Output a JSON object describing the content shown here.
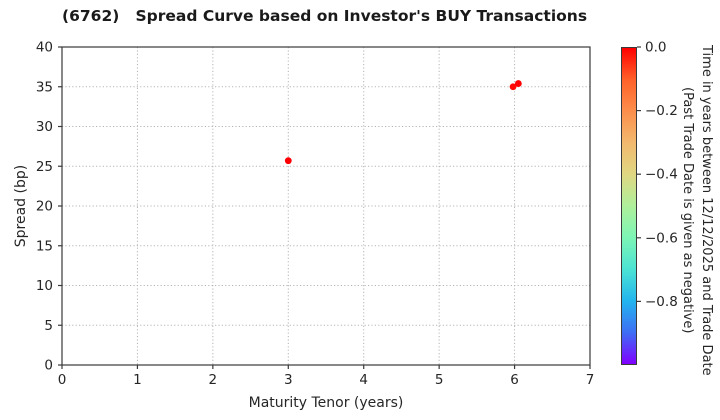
{
  "chart_data": {
    "type": "scatter",
    "title": "(6762)   Spread Curve based on Investor's BUY Transactions",
    "xlabel": "Maturity Tenor (years)",
    "ylabel": "Spread (bp)",
    "xlim": [
      0,
      7
    ],
    "ylim": [
      0,
      40
    ],
    "xticks": [
      0,
      1,
      2,
      3,
      4,
      5,
      6,
      7
    ],
    "yticks": [
      0,
      5,
      10,
      15,
      20,
      25,
      30,
      35,
      40
    ],
    "grid": true,
    "legend": "none",
    "points": [
      {
        "x": 3.0,
        "y": 25.7,
        "t": 0.0
      },
      {
        "x": 5.98,
        "y": 35.0,
        "t": -0.01
      },
      {
        "x": 6.05,
        "y": 35.4,
        "t": 0.0
      }
    ],
    "colorbar": {
      "label_line1": "Time in years between 12/12/2025 and Trade Date",
      "label_line2": "(Past Trade Date is given as negative)",
      "ticks": [
        0.0,
        -0.2,
        -0.4,
        -0.6,
        -0.8
      ],
      "range": [
        -1.0,
        0.0
      ],
      "colors_top_to_bottom": [
        "#ff0000",
        "#ff6129",
        "#fc8e4c",
        "#f2b96e",
        "#e0d782",
        "#aff09b",
        "#7df5b5",
        "#4ce3d3",
        "#22b5ee",
        "#3e6ef4",
        "#8000ff"
      ]
    },
    "accent_colors": {
      "marker": "#ff0f00",
      "gridline": "#b5b5b5",
      "spine": "#3a3a3a"
    }
  }
}
